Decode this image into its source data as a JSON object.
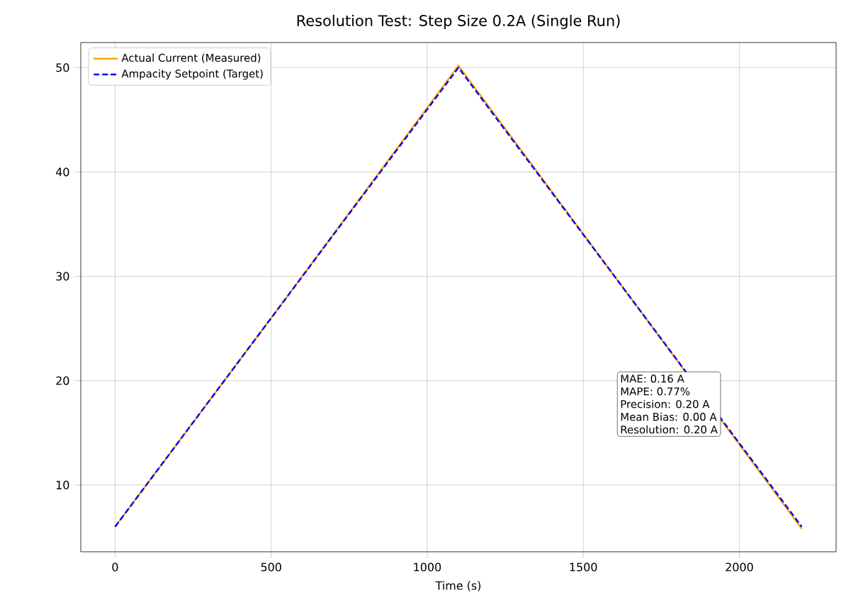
{
  "chart_data": {
    "type": "line",
    "title": "Resolution Test: Step Size 0.2A (Single Run)",
    "xlabel": "Time (s)",
    "xlim": [
      -110,
      2310
    ],
    "xticks": [
      0,
      500,
      1000,
      1500,
      2000
    ],
    "ylim": [
      3.6,
      52.4
    ],
    "yticks": [
      10,
      20,
      30,
      40,
      50
    ],
    "grid": true,
    "legend": "top left",
    "series": [
      {
        "name": "Actual Current (Measured)",
        "color": "#ffa500",
        "line_style": "solid",
        "x": [
          0,
          550,
          1100,
          1650,
          2200
        ],
        "values": [
          6.0,
          28.0,
          50.2,
          28.0,
          5.8
        ]
      },
      {
        "name": "Ampacity Setpoint (Target)",
        "color": "#0000ff",
        "line_style": "dashed",
        "x": [
          0,
          550,
          1100,
          1650,
          2200
        ],
        "values": [
          6.0,
          28.0,
          50.0,
          28.0,
          6.0
        ]
      }
    ],
    "annotations": [
      "MAE: 0.16 A",
      "MAPE: 0.77%",
      "Precision: 0.20 A",
      "Mean Bias: 0.00 A",
      "Resolution: 0.20 A"
    ]
  }
}
